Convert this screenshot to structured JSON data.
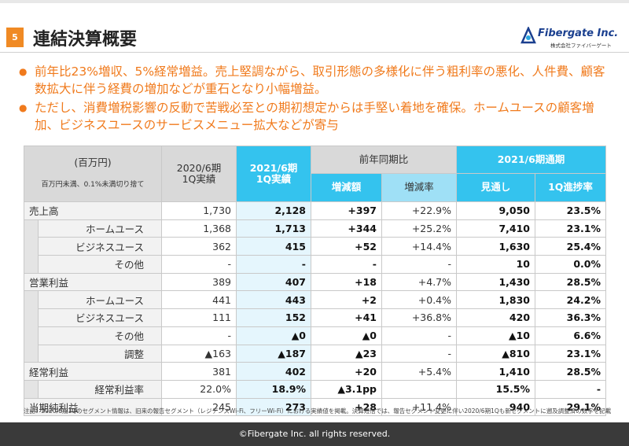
{
  "header": {
    "page_number": "5",
    "title": "連結決算概要",
    "logo": {
      "name": "Fibergate Inc.",
      "subtitle": "株式会社ファイバーゲート"
    }
  },
  "bullets": [
    "前年比23%増収、5%経常増益。売上堅調ながら、取引形態の多様化に伴う粗利率の悪化、人件費、顧客数拡大に伴う経費の増加などが重石となり小幅増益。",
    "ただし、消費増税影響の反動で苦戦必至との期初想定からは手堅い着地を確保。ホームユースの顧客増加、ビジネスユースのサービスメニュー拡大などが寄与"
  ],
  "table": {
    "unit": "(百万円)",
    "unit_note": "百万円未満、0.1%未満切り捨て",
    "columns": {
      "prev": "2020/6期\n1Q実績",
      "curr": "2021/6期\n1Q実績",
      "yoy": "前年同期比",
      "yoy_amount": "増減額",
      "yoy_rate": "増減率",
      "full_year": "2021/6期通期",
      "forecast": "見通し",
      "progress": "1Q進捗率"
    },
    "groups": [
      {
        "label": "売上高",
        "cells": [
          "1,730",
          "2,128",
          "+397",
          "+22.9%",
          "9,050",
          "23.5%"
        ],
        "children": [
          {
            "label": "ホームユース",
            "cells": [
              "1,368",
              "1,713",
              "+344",
              "+25.2%",
              "7,410",
              "23.1%"
            ]
          },
          {
            "label": "ビジネスユース",
            "cells": [
              "362",
              "415",
              "+52",
              "+14.4%",
              "1,630",
              "25.4%"
            ]
          },
          {
            "label": "その他",
            "cells": [
              "-",
              "-",
              "-",
              "-",
              "10",
              "0.0%"
            ]
          }
        ]
      },
      {
        "label": "営業利益",
        "cells": [
          "389",
          "407",
          "+18",
          "+4.7%",
          "1,430",
          "28.5%"
        ],
        "children": [
          {
            "label": "ホームユース",
            "cells": [
              "441",
              "443",
              "+2",
              "+0.4%",
              "1,830",
              "24.2%"
            ]
          },
          {
            "label": "ビジネスユース",
            "cells": [
              "111",
              "152",
              "+41",
              "+36.8%",
              "420",
              "36.3%"
            ]
          },
          {
            "label": "その他",
            "cells": [
              "-",
              "▲0",
              "▲0",
              "-",
              "▲10",
              "6.6%"
            ]
          },
          {
            "label": "調整",
            "cells": [
              "▲163",
              "▲187",
              "▲23",
              "-",
              "▲810",
              "23.1%"
            ]
          }
        ]
      },
      {
        "label": "経常利益",
        "cells": [
          "381",
          "402",
          "+20",
          "+5.4%",
          "1,410",
          "28.5%"
        ],
        "children": [
          {
            "label": "経常利益率",
            "cells": [
              "22.0%",
              "18.9%",
              "▲3.1pp",
              null,
              "15.5%",
              "-"
            ]
          }
        ]
      },
      {
        "label": "当期純利益",
        "cells": [
          "245",
          "273",
          "+28",
          "+11.4%",
          "940",
          "29.1%"
        ],
        "children": []
      }
    ]
  },
  "footnote": "注記：2020/6期1Qのセグメント情報は、旧来の報告セグメント（レジデンスWi-Fi、フリーWi-Fi）における実績値を掲載。決算短信では、報告セグメント変更に伴い2020/6期1Qも新セグメントに遡及調整済の数字を記載",
  "footer": "©Fibergate Inc. all rights reserved."
}
